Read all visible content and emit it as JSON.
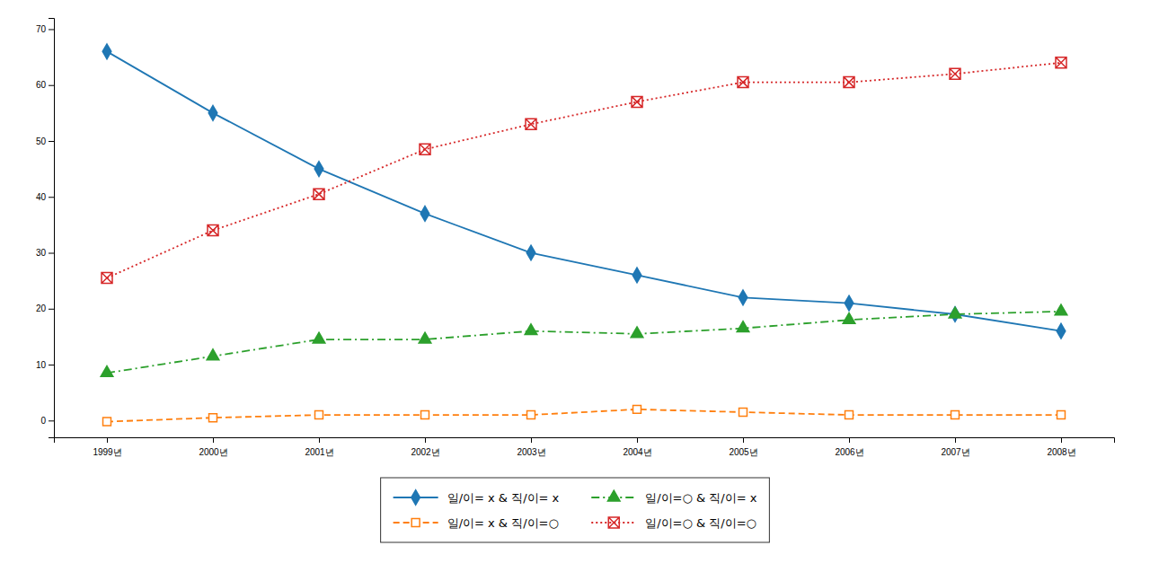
{
  "chart_data": {
    "type": "line",
    "categories": [
      "1999년",
      "2000년",
      "2001년",
      "2002년",
      "2003년",
      "2004년",
      "2005년",
      "2006년",
      "2007년",
      "2008년"
    ],
    "series": [
      {
        "name": "일/이= x & 직/이= x",
        "values": [
          66,
          55,
          45,
          37,
          30,
          26,
          22,
          21,
          19,
          16
        ],
        "marker": "diamond",
        "line_style": "solid"
      },
      {
        "name": "일/이= x & 직/이=○",
        "values": [
          -0.2,
          0.5,
          1.0,
          1.0,
          1.0,
          2.0,
          1.5,
          1.0,
          1.0,
          1.0
        ],
        "marker": "square",
        "line_style": "dashed"
      },
      {
        "name": "일/이=○ & 직/이= x",
        "values": [
          8.5,
          11.5,
          14.5,
          14.5,
          16.0,
          15.5,
          16.5,
          18.0,
          19.0,
          19.5
        ],
        "marker": "triangle",
        "line_style": "dashdot"
      },
      {
        "name": "일/이=○ & 직/이=○",
        "values": [
          25.5,
          34.0,
          40.5,
          48.5,
          53.0,
          57.0,
          60.5,
          60.5,
          62.0,
          64.0
        ],
        "marker": "boxtimes",
        "line_style": "dotted"
      }
    ],
    "ylim": [
      -3,
      72
    ],
    "yticks": [
      0,
      10,
      20,
      30,
      40,
      50,
      60,
      70
    ],
    "grid": false,
    "legend": "bottom"
  }
}
